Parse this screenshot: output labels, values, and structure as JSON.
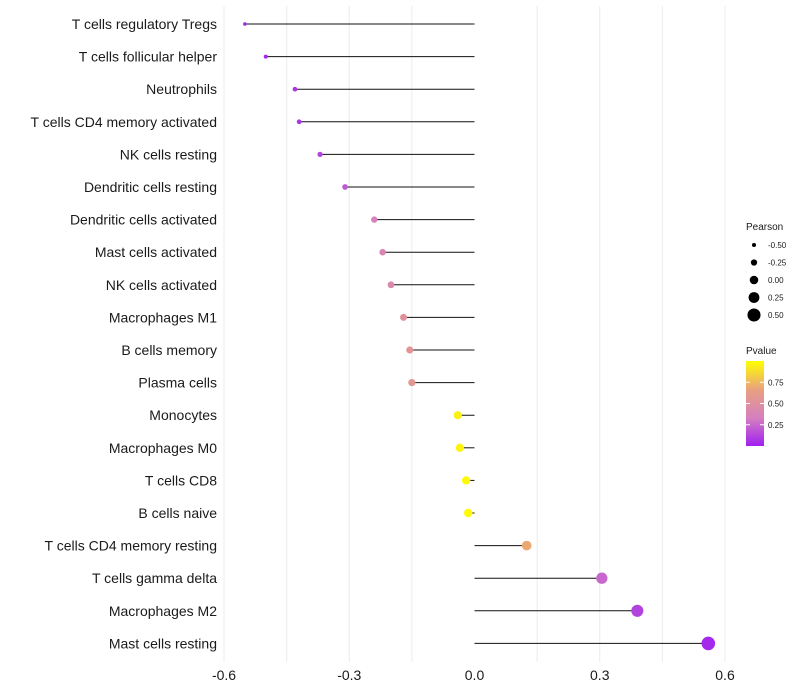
{
  "chart_data": {
    "type": "lollipop",
    "title": "",
    "xlabel": "",
    "ylabel": "",
    "xlim": [
      -0.6,
      0.6
    ],
    "xticks": [
      -0.6,
      -0.3,
      0.0,
      0.3,
      0.6
    ],
    "xtick_labels": [
      "-0.6",
      "-0.3",
      "0.0",
      "0.3",
      "0.6"
    ],
    "categories": [
      "T cells regulatory  Tregs",
      "T cells follicular helper",
      "Neutrophils",
      "T cells CD4 memory activated",
      "NK cells resting",
      "Dendritic cells resting",
      "Dendritic cells activated",
      "Mast cells activated",
      "NK cells activated",
      "Macrophages M1",
      "B cells memory",
      "Plasma cells",
      "Monocytes",
      "Macrophages M0",
      "T cells CD8",
      "B cells naive",
      "T cells CD4 memory resting",
      "T cells gamma delta",
      "Macrophages M2",
      "Mast cells resting"
    ],
    "pearson": [
      -0.55,
      -0.5,
      -0.43,
      -0.42,
      -0.37,
      -0.31,
      -0.24,
      -0.22,
      -0.2,
      -0.17,
      -0.155,
      -0.15,
      -0.04,
      -0.035,
      -0.02,
      -0.015,
      0.125,
      0.305,
      0.39,
      0.56
    ],
    "pvalue": [
      0.02,
      0.03,
      0.07,
      0.08,
      0.13,
      0.2,
      0.35,
      0.4,
      0.43,
      0.52,
      0.55,
      0.57,
      0.95,
      0.96,
      0.98,
      0.99,
      0.7,
      0.25,
      0.12,
      0.03
    ],
    "legend_size": {
      "title": "Pearson",
      "labels": [
        "-0.50",
        "-0.25",
        "0.00",
        "0.25",
        "0.50"
      ],
      "values": [
        -0.5,
        -0.25,
        0.0,
        0.25,
        0.5
      ]
    },
    "legend_color": {
      "title": "Pvalue",
      "labels": [
        "0.75",
        "0.50",
        "0.25"
      ],
      "values": [
        0.75,
        0.5,
        0.25
      ],
      "range": [
        0.0,
        1.0
      ],
      "colors": [
        "#a020f0",
        "#d580c0",
        "#e8a080",
        "#ffff00"
      ]
    },
    "grid": true,
    "legend_position": "right"
  }
}
